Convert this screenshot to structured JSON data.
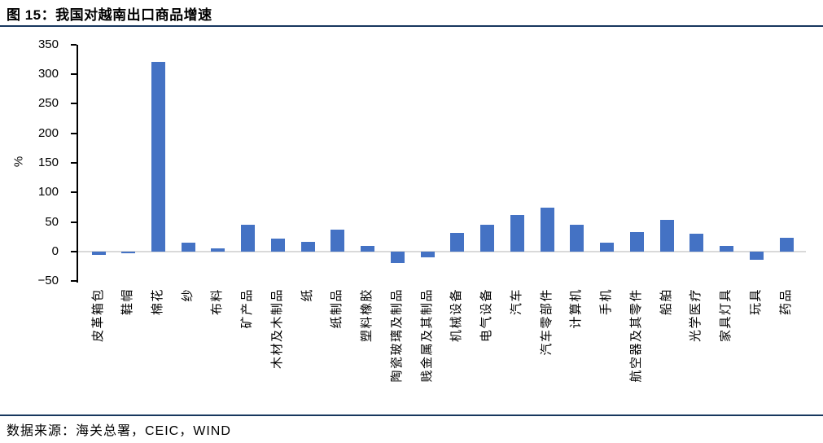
{
  "figure": {
    "title": "图 15：我国对越南出口商品增速",
    "source_note": "数据来源：海关总署，CEIC，WIND"
  },
  "colors": {
    "bar": "#4472C4",
    "rule": "#17375E",
    "zero_line": "#D9D9D9",
    "axis": "#000000"
  },
  "chart_data": {
    "type": "bar",
    "title": "我国对越南出口商品增速",
    "xlabel": "",
    "ylabel": "%",
    "ylim": [
      -50,
      350
    ],
    "ytick_step": 50,
    "grid": false,
    "legend": "none",
    "zero_baseline": true,
    "categories": [
      "皮革箱包",
      "鞋帽",
      "棉花",
      "纱",
      "布料",
      "矿产品",
      "木材及木制品",
      "纸",
      "纸制品",
      "塑料橡胶",
      "陶瓷玻璃及制品",
      "贱金属及其制品",
      "机械设备",
      "电气设备",
      "汽车",
      "汽车零部件",
      "计算机",
      "手机",
      "航空器及其零件",
      "船舶",
      "光学医疗",
      "家具灯具",
      "玩具",
      "药品"
    ],
    "values": [
      -6,
      -3,
      320,
      15,
      6,
      46,
      22,
      17,
      37,
      9,
      -19,
      -9,
      32,
      45,
      62,
      74,
      45,
      15,
      33,
      54,
      30,
      10,
      -14,
      24
    ]
  }
}
